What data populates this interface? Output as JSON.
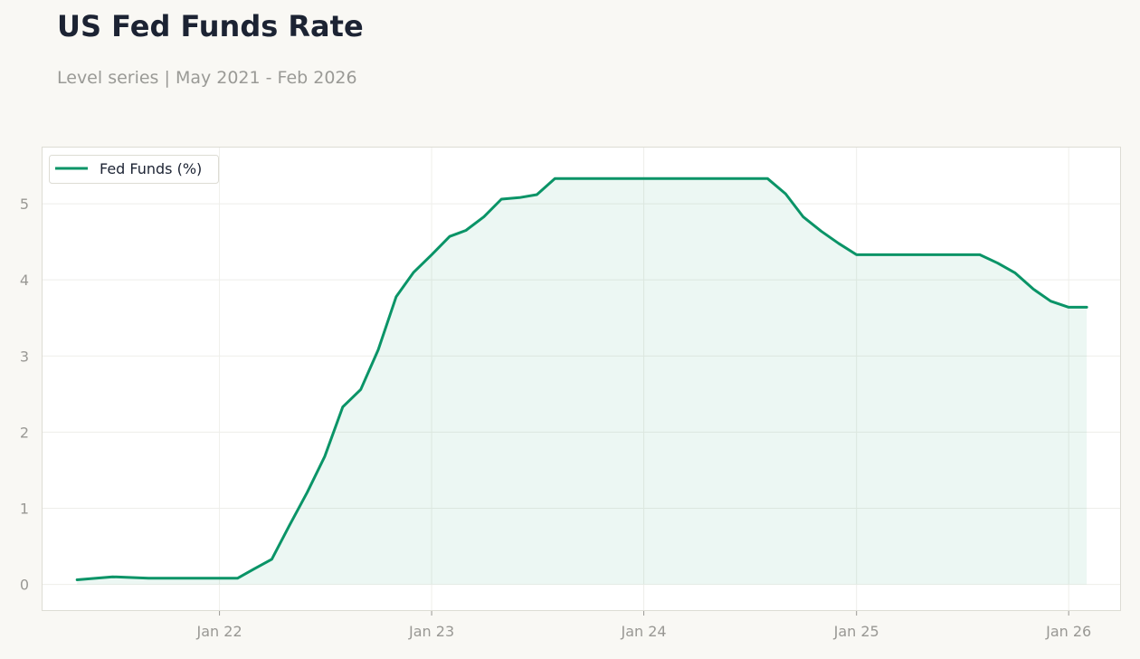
{
  "header": {
    "title": "US Fed Funds Rate",
    "subtitle": "Level series | May 2021 - Feb 2026"
  },
  "colors": {
    "line": "#0a9467",
    "fill": "#0a9467",
    "background": "#f9f8f4",
    "plot_background": "#ffffff",
    "grid": "#eeeeea",
    "text_muted": "#999894"
  },
  "chart_data": {
    "type": "area",
    "title": "US Fed Funds Rate",
    "subtitle": "Level series | May 2021 - Feb 2026",
    "xlabel": "",
    "ylabel": "",
    "x_range": [
      "2021-03-01",
      "2026-04-01"
    ],
    "ylim": [
      -0.35,
      5.75
    ],
    "y_ticks": [
      0,
      1,
      2,
      3,
      4,
      5
    ],
    "x_ticks": [
      {
        "date": "2022-01-01",
        "label": "Jan 22"
      },
      {
        "date": "2023-01-01",
        "label": "Jan 23"
      },
      {
        "date": "2024-01-01",
        "label": "Jan 24"
      },
      {
        "date": "2025-01-01",
        "label": "Jan 25"
      },
      {
        "date": "2026-01-01",
        "label": "Jan 26"
      }
    ],
    "grid": true,
    "legend_position": "top-left",
    "series": [
      {
        "name": "Fed Funds (%)",
        "points": [
          [
            "2021-05-01",
            0.06
          ],
          [
            "2021-07-01",
            0.1
          ],
          [
            "2021-09-01",
            0.08
          ],
          [
            "2021-11-01",
            0.08
          ],
          [
            "2022-01-01",
            0.08
          ],
          [
            "2022-02-01",
            0.08
          ],
          [
            "2022-03-01",
            0.2
          ],
          [
            "2022-04-01",
            0.33
          ],
          [
            "2022-05-01",
            0.77
          ],
          [
            "2022-06-01",
            1.21
          ],
          [
            "2022-07-01",
            1.68
          ],
          [
            "2022-08-01",
            2.33
          ],
          [
            "2022-09-01",
            2.56
          ],
          [
            "2022-10-01",
            3.08
          ],
          [
            "2022-11-01",
            3.78
          ],
          [
            "2022-12-01",
            4.1
          ],
          [
            "2023-01-01",
            4.33
          ],
          [
            "2023-02-01",
            4.57
          ],
          [
            "2023-03-01",
            4.65
          ],
          [
            "2023-04-01",
            4.83
          ],
          [
            "2023-05-01",
            5.06
          ],
          [
            "2023-06-01",
            5.08
          ],
          [
            "2023-07-01",
            5.12
          ],
          [
            "2023-08-01",
            5.33
          ],
          [
            "2023-09-01",
            5.33
          ],
          [
            "2023-10-01",
            5.33
          ],
          [
            "2023-11-01",
            5.33
          ],
          [
            "2023-12-01",
            5.33
          ],
          [
            "2024-01-01",
            5.33
          ],
          [
            "2024-02-01",
            5.33
          ],
          [
            "2024-03-01",
            5.33
          ],
          [
            "2024-04-01",
            5.33
          ],
          [
            "2024-05-01",
            5.33
          ],
          [
            "2024-06-01",
            5.33
          ],
          [
            "2024-07-01",
            5.33
          ],
          [
            "2024-08-01",
            5.33
          ],
          [
            "2024-09-01",
            5.13
          ],
          [
            "2024-10-01",
            4.83
          ],
          [
            "2024-11-01",
            4.64
          ],
          [
            "2024-12-01",
            4.48
          ],
          [
            "2025-01-01",
            4.33
          ],
          [
            "2025-02-01",
            4.33
          ],
          [
            "2025-03-01",
            4.33
          ],
          [
            "2025-04-01",
            4.33
          ],
          [
            "2025-05-01",
            4.33
          ],
          [
            "2025-06-01",
            4.33
          ],
          [
            "2025-07-01",
            4.33
          ],
          [
            "2025-08-01",
            4.33
          ],
          [
            "2025-09-01",
            4.22
          ],
          [
            "2025-10-01",
            4.09
          ],
          [
            "2025-11-01",
            3.88
          ],
          [
            "2025-12-01",
            3.72
          ],
          [
            "2026-01-01",
            3.64
          ],
          [
            "2026-02-01",
            3.64
          ]
        ]
      }
    ]
  }
}
